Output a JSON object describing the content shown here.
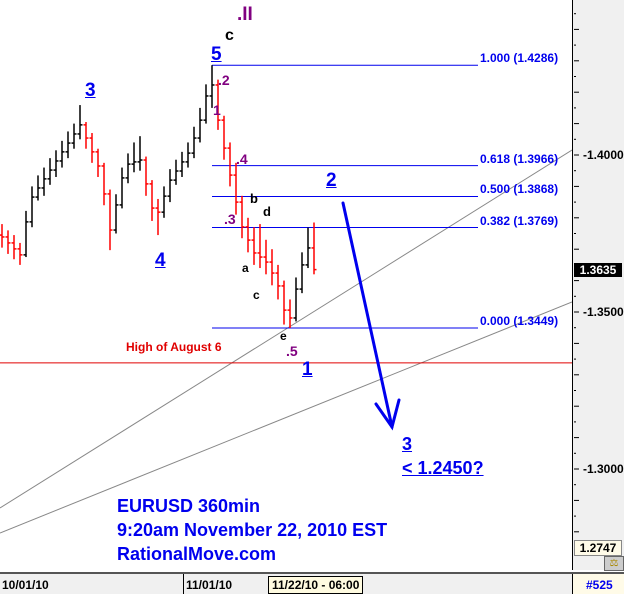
{
  "chart_data": {
    "type": "ohlc",
    "symbol_title": "EURUSD 360min",
    "timestamp": "9:20am November 22, 2010 EST",
    "source": "RationalMove.com",
    "ylim": [
      1.2747,
      1.447
    ],
    "y_ticks": [
      "1.4000",
      "1.3500",
      "1.3000"
    ],
    "y_tick_values": [
      1.4,
      1.35,
      1.3
    ],
    "x_tick_labels": [
      "10/01/10",
      "11/01/10"
    ],
    "cursor_date": "11/22/10 - 06:00",
    "current_price": "1.3635",
    "axis_min_label": "1.2747",
    "bar_count_label": "#525",
    "colors": {
      "up": "#000000",
      "down": "#ff0000",
      "fib": "#0000ee",
      "trendline": "#888888",
      "support": "#e00000"
    },
    "bars_ohlc": [
      [
        1.3745,
        1.378,
        1.3705,
        1.3739
      ],
      [
        1.3739,
        1.376,
        1.3685,
        1.372
      ],
      [
        1.372,
        1.3745,
        1.3668,
        1.3701
      ],
      [
        1.3701,
        1.372,
        1.365,
        1.3682
      ],
      [
        1.3682,
        1.3822,
        1.3675,
        1.3787
      ],
      [
        1.3787,
        1.39,
        1.377,
        1.3866
      ],
      [
        1.3866,
        1.3935,
        1.3855,
        1.3895
      ],
      [
        1.3895,
        1.396,
        1.387,
        1.3924
      ],
      [
        1.3924,
        1.399,
        1.3905,
        1.3952
      ],
      [
        1.3952,
        1.4015,
        1.393,
        1.3981
      ],
      [
        1.3981,
        1.4045,
        1.396,
        1.401
      ],
      [
        1.401,
        1.4075,
        1.399,
        1.4038
      ],
      [
        1.4038,
        1.41,
        1.402,
        1.4067
      ],
      [
        1.4067,
        1.4159,
        1.405,
        1.4096
      ],
      [
        1.4096,
        1.4105,
        1.402,
        1.4054
      ],
      [
        1.4054,
        1.407,
        1.3975,
        1.401
      ],
      [
        1.401,
        1.402,
        1.393,
        1.3965
      ],
      [
        1.3965,
        1.3975,
        1.384,
        1.3876
      ],
      [
        1.3876,
        1.389,
        1.3697,
        1.3761
      ],
      [
        1.3761,
        1.3875,
        1.375,
        1.3841
      ],
      [
        1.3841,
        1.396,
        1.383,
        1.3927
      ],
      [
        1.3927,
        1.4005,
        1.391,
        1.3971
      ],
      [
        1.3971,
        1.404,
        1.3945,
        1.3978
      ],
      [
        1.3978,
        1.406,
        1.395,
        1.3984
      ],
      [
        1.3984,
        1.3995,
        1.387,
        1.3908
      ],
      [
        1.3908,
        1.392,
        1.379,
        1.3831
      ],
      [
        1.3831,
        1.386,
        1.3745,
        1.3818
      ],
      [
        1.3818,
        1.39,
        1.38,
        1.3869
      ],
      [
        1.3869,
        1.3955,
        1.385,
        1.392
      ],
      [
        1.392,
        1.3985,
        1.3905,
        1.3949
      ],
      [
        1.3949,
        1.401,
        1.393,
        1.3978
      ],
      [
        1.3978,
        1.404,
        1.396,
        1.4006
      ],
      [
        1.4006,
        1.409,
        1.399,
        1.4054
      ],
      [
        1.4054,
        1.415,
        1.404,
        1.4111
      ],
      [
        1.4111,
        1.4225,
        1.41,
        1.4188
      ],
      [
        1.4188,
        1.4286,
        1.415,
        1.4223
      ],
      [
        1.4223,
        1.424,
        1.408,
        1.4111
      ],
      [
        1.4111,
        1.4125,
        1.3985,
        1.4022
      ],
      [
        1.4022,
        1.404,
        1.39,
        1.3936
      ],
      [
        1.3936,
        1.3975,
        1.381,
        1.385
      ],
      [
        1.385,
        1.387,
        1.3735,
        1.3771
      ],
      [
        1.3771,
        1.38,
        1.369,
        1.3729
      ],
      [
        1.3729,
        1.377,
        1.365,
        1.3688
      ],
      [
        1.3688,
        1.378,
        1.364,
        1.3675
      ],
      [
        1.3675,
        1.373,
        1.362,
        1.3659
      ],
      [
        1.3659,
        1.37,
        1.3585,
        1.3624
      ],
      [
        1.3624,
        1.365,
        1.354,
        1.3583
      ],
      [
        1.3583,
        1.36,
        1.346,
        1.3506
      ],
      [
        1.3506,
        1.354,
        1.3449,
        1.3481
      ],
      [
        1.3481,
        1.361,
        1.347,
        1.3573
      ],
      [
        1.3573,
        1.369,
        1.356,
        1.365
      ],
      [
        1.365,
        1.3769,
        1.364,
        1.3704
      ],
      [
        1.3704,
        1.3785,
        1.362,
        1.3635
      ]
    ],
    "fib_levels": [
      {
        "label": "1.000 (1.4286)",
        "price": 1.4286
      },
      {
        "label": "0.618 (1.3966)",
        "price": 1.3966
      },
      {
        "label": "0.500 (1.3868)",
        "price": 1.3868
      },
      {
        "label": "0.382 (1.3769)",
        "price": 1.3769
      },
      {
        "label": "0.000 (1.3449)",
        "price": 1.3449
      }
    ],
    "support_line": {
      "label": "High of August 6",
      "price": 1.3338
    },
    "annotations": {
      "wave_II": ".II",
      "c_top": "c",
      "wave5": "5",
      "sub2": ".2",
      "sub1": "1",
      "sub4": ".4",
      "b": "b",
      "d": "d",
      "sub3": ".3",
      "a": "a",
      "c_low": "c",
      "e": "e",
      "sub5": ".5",
      "wave1": "1",
      "wave3": "3",
      "wave4": "4",
      "wave2": "2",
      "target_wave": "3",
      "target_price": "< 1.2450?"
    }
  }
}
